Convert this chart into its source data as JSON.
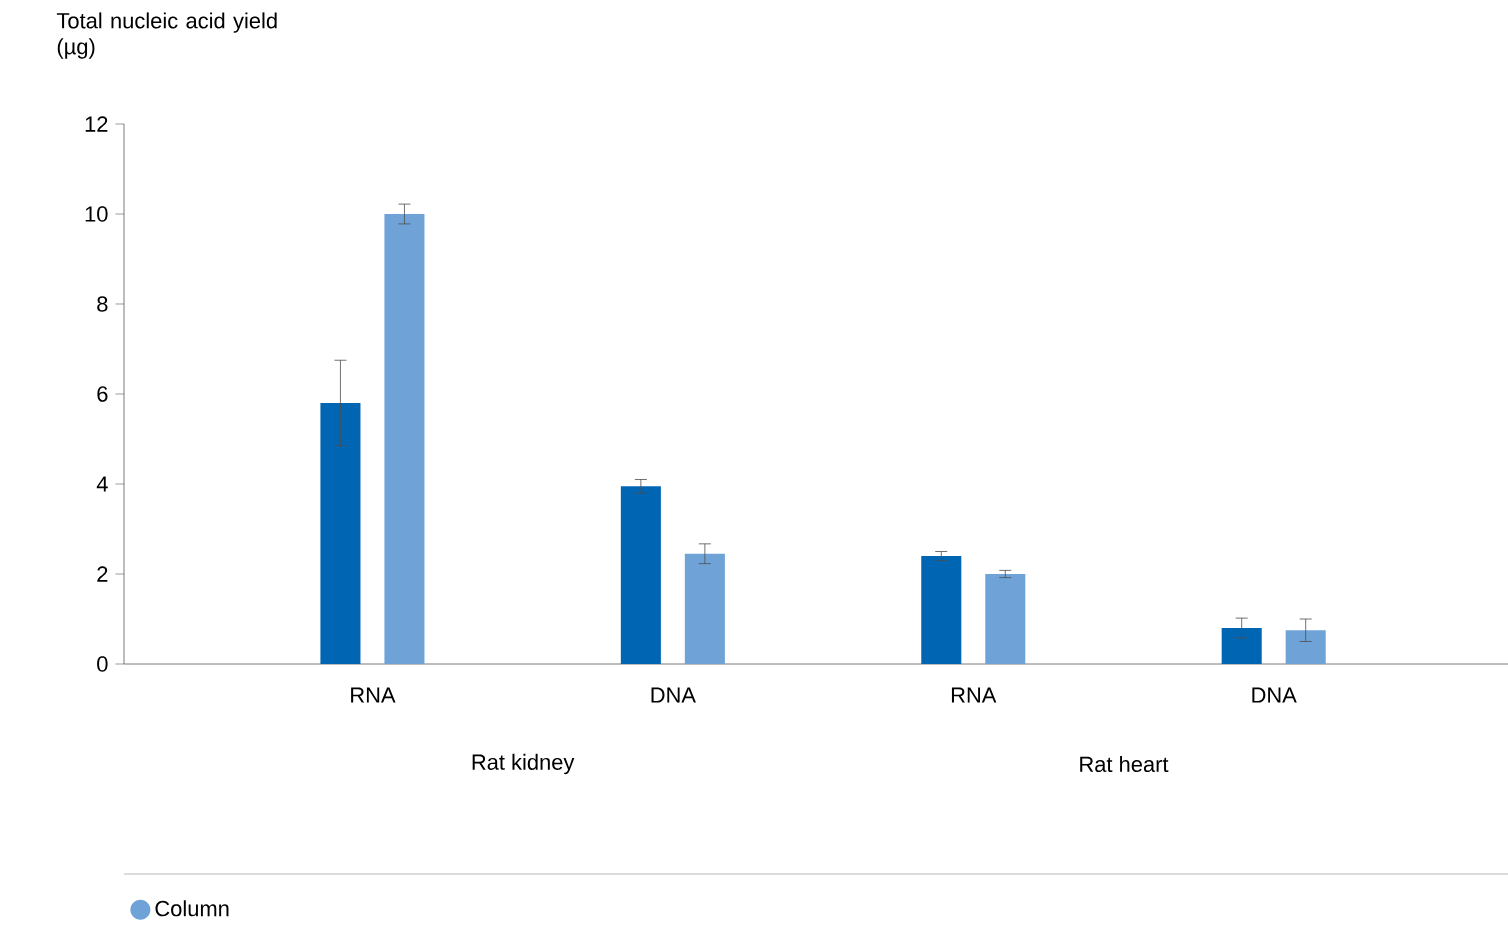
{
  "chart_data": {
    "type": "bar",
    "ylabel": "Total nucleic acid yield (µg)",
    "categories": [
      "RNA",
      "DNA",
      "RNA",
      "DNA"
    ],
    "annotations": [
      "Rat kidney",
      "Rat heart"
    ],
    "series": [
      {
        "color": "#0066b3",
        "values": [
          5.8,
          3.95,
          2.4,
          0.8
        ],
        "errors": [
          0.95,
          0.15,
          0.1,
          0.22
        ]
      },
      {
        "name": "Column",
        "color": "#6fa3d8",
        "values": [
          10.0,
          2.45,
          2.0,
          0.75
        ],
        "errors": [
          0.22,
          0.22,
          0.08,
          0.25
        ]
      }
    ],
    "ylim": [
      0,
      12
    ],
    "yticks": [
      0,
      2,
      4,
      6,
      8,
      10,
      12
    ],
    "grid": false,
    "legend": "bottom"
  }
}
